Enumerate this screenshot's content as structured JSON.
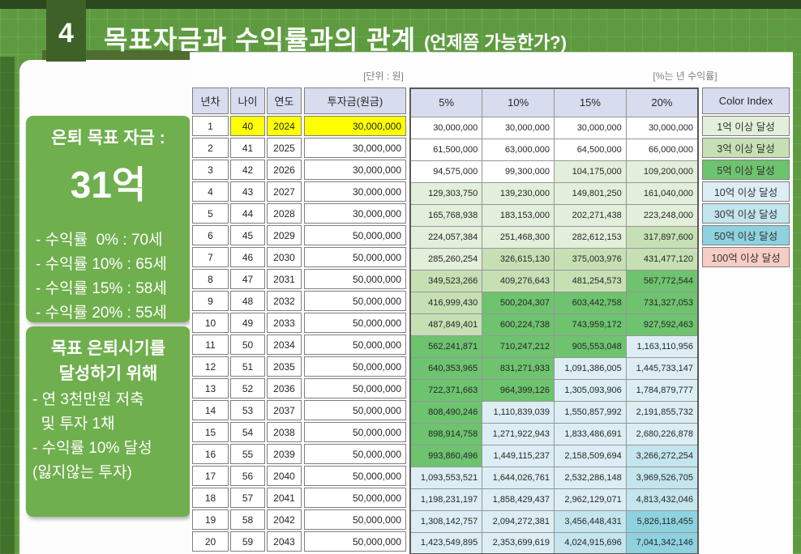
{
  "slide": {
    "number": "4",
    "title": "목표자금과 수익률과의 관계",
    "subtitle": "(언제쯤 가능한가?)"
  },
  "sidebar": {
    "goal_box": {
      "title": "은퇴 목표 자금 :",
      "amount": "31억",
      "lines": [
        "- 수익률  0% : 70세",
        "- 수익률 10% : 65세",
        "- 수익률 15% : 58세",
        "- 수익률 20% : 55세"
      ]
    },
    "plan_box": {
      "title_line1": "목표 은퇴시기를",
      "title_line2": "달성하기 위해",
      "lines": [
        "- 연 3천만원 저축",
        "  및 투자 1채",
        "- 수익률 10% 달성",
        "(잃지않는 투자)"
      ]
    }
  },
  "table": {
    "unit_label": "[단위 : 원]",
    "rate_label": "[%는 년 수익률]",
    "headers": {
      "year_no": "년차",
      "age": "나이",
      "year": "연도",
      "principal": "투자금(원금)",
      "rates": [
        "5%",
        "10%",
        "15%",
        "20%"
      ],
      "color_index": "Color Index"
    },
    "highlight_color": "#FFFF00",
    "tiers": [
      {
        "label": "1억 이상 달성",
        "min": 100000000,
        "color": "#E2EFDA"
      },
      {
        "label": "3억 이상 달성",
        "min": 300000000,
        "color": "#C6E0B4"
      },
      {
        "label": "5억 이상 달성",
        "min": 500000000,
        "color": "#6EC36F"
      },
      {
        "label": "10억 이상 달성",
        "min": 1000000000,
        "color": "#DCEEF4"
      },
      {
        "label": "30억 이상 달성",
        "min": 3000000000,
        "color": "#C3E5ED"
      },
      {
        "label": "50억 이상 달성",
        "min": 5000000000,
        "color": "#8ED2DF"
      },
      {
        "label": "100억 이상 달성",
        "min": 10000000000,
        "color": "#F8CDC5"
      }
    ],
    "rows": [
      {
        "n": "1",
        "age": "40",
        "year": "2024",
        "principal": "30,000,000",
        "highlight": true,
        "values": [
          "30,000,000",
          "30,000,000",
          "30,000,000",
          "30,000,000"
        ]
      },
      {
        "n": "2",
        "age": "41",
        "year": "2025",
        "principal": "30,000,000",
        "highlight": false,
        "values": [
          "61,500,000",
          "63,000,000",
          "64,500,000",
          "66,000,000"
        ]
      },
      {
        "n": "3",
        "age": "42",
        "year": "2026",
        "principal": "30,000,000",
        "highlight": false,
        "values": [
          "94,575,000",
          "99,300,000",
          "104,175,000",
          "109,200,000"
        ]
      },
      {
        "n": "4",
        "age": "43",
        "year": "2027",
        "principal": "30,000,000",
        "highlight": false,
        "values": [
          "129,303,750",
          "139,230,000",
          "149,801,250",
          "161,040,000"
        ]
      },
      {
        "n": "5",
        "age": "44",
        "year": "2028",
        "principal": "30,000,000",
        "highlight": false,
        "values": [
          "165,768,938",
          "183,153,000",
          "202,271,438",
          "223,248,000"
        ]
      },
      {
        "n": "6",
        "age": "45",
        "year": "2029",
        "principal": "50,000,000",
        "highlight": false,
        "values": [
          "224,057,384",
          "251,468,300",
          "282,612,153",
          "317,897,600"
        ]
      },
      {
        "n": "7",
        "age": "46",
        "year": "2030",
        "principal": "50,000,000",
        "highlight": false,
        "values": [
          "285,260,254",
          "326,615,130",
          "375,003,976",
          "431,477,120"
        ]
      },
      {
        "n": "8",
        "age": "47",
        "year": "2031",
        "principal": "50,000,000",
        "highlight": false,
        "values": [
          "349,523,266",
          "409,276,643",
          "481,254,573",
          "567,772,544"
        ]
      },
      {
        "n": "9",
        "age": "48",
        "year": "2032",
        "principal": "50,000,000",
        "highlight": false,
        "values": [
          "416,999,430",
          "500,204,307",
          "603,442,758",
          "731,327,053"
        ]
      },
      {
        "n": "10",
        "age": "49",
        "year": "2033",
        "principal": "50,000,000",
        "highlight": false,
        "values": [
          "487,849,401",
          "600,224,738",
          "743,959,172",
          "927,592,463"
        ]
      },
      {
        "n": "11",
        "age": "50",
        "year": "2034",
        "principal": "50,000,000",
        "highlight": false,
        "values": [
          "562,241,871",
          "710,247,212",
          "905,553,048",
          "1,163,110,956"
        ]
      },
      {
        "n": "12",
        "age": "51",
        "year": "2035",
        "principal": "50,000,000",
        "highlight": false,
        "values": [
          "640,353,965",
          "831,271,933",
          "1,091,386,005",
          "1,445,733,147"
        ]
      },
      {
        "n": "13",
        "age": "52",
        "year": "2036",
        "principal": "50,000,000",
        "highlight": false,
        "values": [
          "722,371,663",
          "964,399,126",
          "1,305,093,906",
          "1,784,879,777"
        ]
      },
      {
        "n": "14",
        "age": "53",
        "year": "2037",
        "principal": "50,000,000",
        "highlight": false,
        "values": [
          "808,490,246",
          "1,110,839,039",
          "1,550,857,992",
          "2,191,855,732"
        ]
      },
      {
        "n": "15",
        "age": "54",
        "year": "2038",
        "principal": "50,000,000",
        "highlight": false,
        "values": [
          "898,914,758",
          "1,271,922,943",
          "1,833,486,691",
          "2,680,226,878"
        ]
      },
      {
        "n": "16",
        "age": "55",
        "year": "2039",
        "principal": "50,000,000",
        "highlight": false,
        "values": [
          "993,860,496",
          "1,449,115,237",
          "2,158,509,694",
          "3,266,272,254"
        ]
      },
      {
        "n": "17",
        "age": "56",
        "year": "2040",
        "principal": "50,000,000",
        "highlight": false,
        "values": [
          "1,093,553,521",
          "1,644,026,761",
          "2,532,286,148",
          "3,969,526,705"
        ]
      },
      {
        "n": "18",
        "age": "57",
        "year": "2041",
        "principal": "50,000,000",
        "highlight": false,
        "values": [
          "1,198,231,197",
          "1,858,429,437",
          "2,962,129,071",
          "4,813,432,046"
        ]
      },
      {
        "n": "19",
        "age": "58",
        "year": "2042",
        "principal": "50,000,000",
        "highlight": false,
        "values": [
          "1,308,142,757",
          "2,094,272,381",
          "3,456,448,431",
          "5,826,118,455"
        ]
      },
      {
        "n": "20",
        "age": "59",
        "year": "2043",
        "principal": "50,000,000",
        "highlight": false,
        "values": [
          "1,423,549,895",
          "2,353,699,619",
          "4,024,915,696",
          "7,041,342,146"
        ]
      }
    ]
  }
}
